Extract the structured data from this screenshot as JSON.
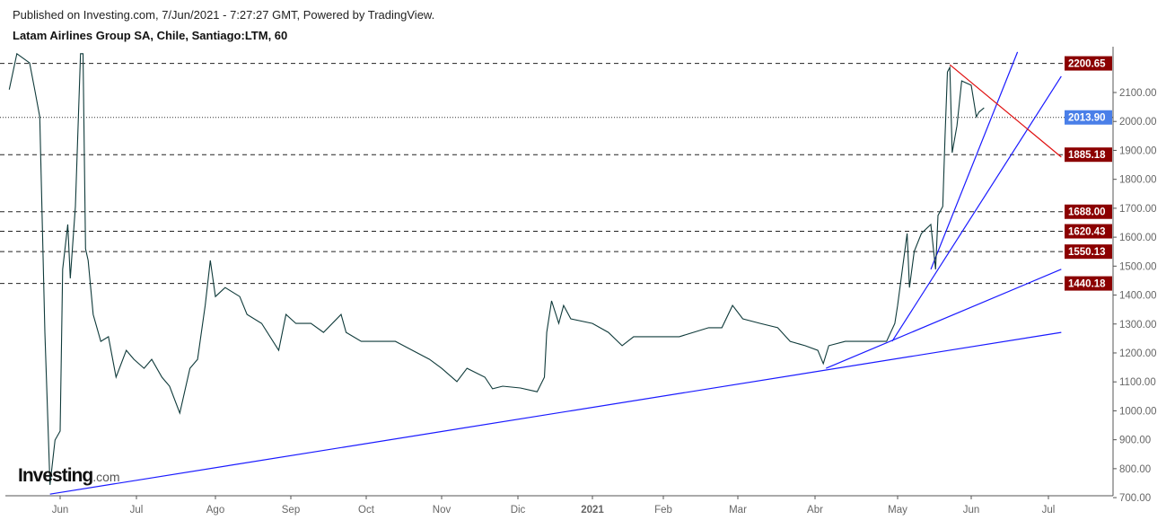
{
  "header": {
    "published": "Published on Investing.com, 7/Jun/2021 - 7:27:27 GMT, Powered by TradingView.",
    "title": "Latam Airlines Group SA, Chile, Santiago:LTM, 60"
  },
  "logo": {
    "brand": "Investing",
    "suffix": ".com"
  },
  "chart_data": {
    "type": "line",
    "title": "Latam Airlines Group SA, Chile, Santiago:LTM, 60",
    "ylim": [
      700,
      2240
    ],
    "y_ticks": [
      "700.00",
      "800.00",
      "900.00",
      "1000.00",
      "1100.00",
      "1200.00",
      "1300.00",
      "1400.00",
      "1500.00",
      "1600.00",
      "1700.00",
      "1800.00",
      "1900.00",
      "2000.00",
      "2100.00"
    ],
    "x_ticks": [
      {
        "label": "Jun",
        "date": "2020-06-01"
      },
      {
        "label": "Jul",
        "date": "2020-07-01"
      },
      {
        "label": "Ago",
        "date": "2020-08-01"
      },
      {
        "label": "Sep",
        "date": "2020-09-01"
      },
      {
        "label": "Oct",
        "date": "2020-10-01"
      },
      {
        "label": "Nov",
        "date": "2020-11-01"
      },
      {
        "label": "Dic",
        "date": "2020-12-01"
      },
      {
        "label": "2021",
        "date": "2021-01-01",
        "bold": true
      },
      {
        "label": "Feb",
        "date": "2021-02-01"
      },
      {
        "label": "Mar",
        "date": "2021-03-01"
      },
      {
        "label": "Abr",
        "date": "2021-04-01"
      },
      {
        "label": "May",
        "date": "2021-05-01"
      },
      {
        "label": "Jun",
        "date": "2021-06-01"
      },
      {
        "label": "Jul",
        "date": "2021-07-01"
      }
    ],
    "series": [
      {
        "color": "#0f3a3a",
        "points": [
          [
            "2020-05-12",
            2110
          ],
          [
            "2020-05-15",
            2234
          ],
          [
            "2020-05-20",
            2202
          ],
          [
            "2020-05-22",
            2110
          ],
          [
            "2020-05-24",
            2016
          ],
          [
            "2020-05-26",
            1271
          ],
          [
            "2020-05-28",
            744
          ],
          [
            "2020-05-30",
            899
          ],
          [
            "2020-06-01",
            930
          ],
          [
            "2020-06-02",
            1489
          ],
          [
            "2020-06-04",
            1644
          ],
          [
            "2020-06-05",
            1458
          ],
          [
            "2020-06-07",
            1706
          ],
          [
            "2020-06-09",
            2234
          ],
          [
            "2020-06-10",
            2234
          ],
          [
            "2020-06-11",
            1560
          ],
          [
            "2020-06-12",
            1520
          ],
          [
            "2020-06-14",
            1333
          ],
          [
            "2020-06-17",
            1240
          ],
          [
            "2020-06-20",
            1256
          ],
          [
            "2020-06-23",
            1116
          ],
          [
            "2020-06-27",
            1209
          ],
          [
            "2020-06-30",
            1178
          ],
          [
            "2020-07-04",
            1147
          ],
          [
            "2020-07-07",
            1178
          ],
          [
            "2020-07-11",
            1116
          ],
          [
            "2020-07-14",
            1085
          ],
          [
            "2020-07-18",
            992
          ],
          [
            "2020-07-22",
            1147
          ],
          [
            "2020-07-25",
            1178
          ],
          [
            "2020-07-28",
            1364
          ],
          [
            "2020-07-30",
            1520
          ],
          [
            "2020-08-01",
            1395
          ],
          [
            "2020-08-05",
            1426
          ],
          [
            "2020-08-11",
            1395
          ],
          [
            "2020-08-14",
            1333
          ],
          [
            "2020-08-20",
            1302
          ],
          [
            "2020-08-27",
            1209
          ],
          [
            "2020-08-30",
            1333
          ],
          [
            "2020-09-03",
            1302
          ],
          [
            "2020-09-09",
            1302
          ],
          [
            "2020-09-14",
            1271
          ],
          [
            "2020-09-21",
            1333
          ],
          [
            "2020-09-23",
            1271
          ],
          [
            "2020-09-29",
            1240
          ],
          [
            "2020-10-06",
            1240
          ],
          [
            "2020-10-13",
            1240
          ],
          [
            "2020-10-20",
            1209
          ],
          [
            "2020-10-27",
            1178
          ],
          [
            "2020-11-01",
            1147
          ],
          [
            "2020-11-07",
            1101
          ],
          [
            "2020-11-11",
            1147
          ],
          [
            "2020-11-18",
            1116
          ],
          [
            "2020-11-21",
            1076
          ],
          [
            "2020-11-25",
            1085
          ],
          [
            "2020-12-02",
            1079
          ],
          [
            "2020-12-09",
            1066
          ],
          [
            "2020-12-12",
            1116
          ],
          [
            "2020-12-13",
            1271
          ],
          [
            "2020-12-15",
            1380
          ],
          [
            "2020-12-18",
            1302
          ],
          [
            "2020-12-20",
            1364
          ],
          [
            "2020-12-23",
            1318
          ],
          [
            "2021-01-01",
            1302
          ],
          [
            "2021-01-08",
            1271
          ],
          [
            "2021-01-14",
            1225
          ],
          [
            "2021-01-19",
            1256
          ],
          [
            "2021-01-26",
            1256
          ],
          [
            "2021-02-07",
            1256
          ],
          [
            "2021-02-18",
            1287
          ],
          [
            "2021-02-23",
            1287
          ],
          [
            "2021-02-27",
            1364
          ],
          [
            "2021-03-03",
            1318
          ],
          [
            "2021-03-10",
            1302
          ],
          [
            "2021-03-17",
            1287
          ],
          [
            "2021-03-22",
            1240
          ],
          [
            "2021-03-28",
            1225
          ],
          [
            "2021-04-02",
            1209
          ],
          [
            "2021-04-04",
            1163
          ],
          [
            "2021-04-06",
            1225
          ],
          [
            "2021-04-12",
            1240
          ],
          [
            "2021-04-19",
            1240
          ],
          [
            "2021-04-27",
            1240
          ],
          [
            "2021-04-30",
            1302
          ],
          [
            "2021-05-01",
            1364
          ],
          [
            "2021-05-03",
            1489
          ],
          [
            "2021-05-05",
            1613
          ],
          [
            "2021-05-06",
            1426
          ],
          [
            "2021-05-08",
            1551
          ],
          [
            "2021-05-11",
            1613
          ],
          [
            "2021-05-15",
            1644
          ],
          [
            "2021-05-17",
            1489
          ],
          [
            "2021-05-18",
            1675
          ],
          [
            "2021-05-20",
            1706
          ],
          [
            "2021-05-21",
            1954
          ],
          [
            "2021-05-22",
            2171
          ],
          [
            "2021-05-23",
            2187
          ],
          [
            "2021-05-24",
            1892
          ],
          [
            "2021-05-26",
            1985
          ],
          [
            "2021-05-28",
            2140
          ],
          [
            "2021-06-01",
            2125
          ],
          [
            "2021-06-03",
            2016
          ],
          [
            "2021-06-04",
            2032
          ],
          [
            "2021-06-06",
            2047
          ]
        ]
      }
    ],
    "trend_lines": [
      {
        "color": "#1a1aff",
        "from": [
          "2020-05-28",
          712
        ],
        "to": [
          "2021-07-06",
          1271
        ]
      },
      {
        "color": "#1a1aff",
        "from": [
          "2021-04-05",
          1147
        ],
        "to": [
          "2021-07-06",
          1489
        ]
      },
      {
        "color": "#1a1aff",
        "from": [
          "2021-04-29",
          1240
        ],
        "to": [
          "2021-07-06",
          2156
        ]
      },
      {
        "color": "#1a1aff",
        "from": [
          "2021-05-15",
          1489
        ],
        "to": [
          "2021-06-19",
          2240
        ]
      },
      {
        "color": "#e01010",
        "from": [
          "2021-05-23",
          2196
        ],
        "to": [
          "2021-07-06",
          1877
        ]
      }
    ],
    "horizontal_levels": [
      {
        "value": 2200.65,
        "label": "2200.65",
        "color": "#8b0000"
      },
      {
        "value": 1885.18,
        "label": "1885.18",
        "color": "#8b0000"
      },
      {
        "value": 1688.0,
        "label": "1688.00",
        "color": "#8b0000"
      },
      {
        "value": 1620.43,
        "label": "1620.43",
        "color": "#8b0000"
      },
      {
        "value": 1550.13,
        "label": "1550.13",
        "color": "#8b0000"
      },
      {
        "value": 1440.18,
        "label": "1440.18",
        "color": "#8b0000"
      }
    ],
    "last_price": {
      "value": 2013.9,
      "label": "2013.90",
      "color": "#4a7fe8"
    },
    "grid": false
  }
}
